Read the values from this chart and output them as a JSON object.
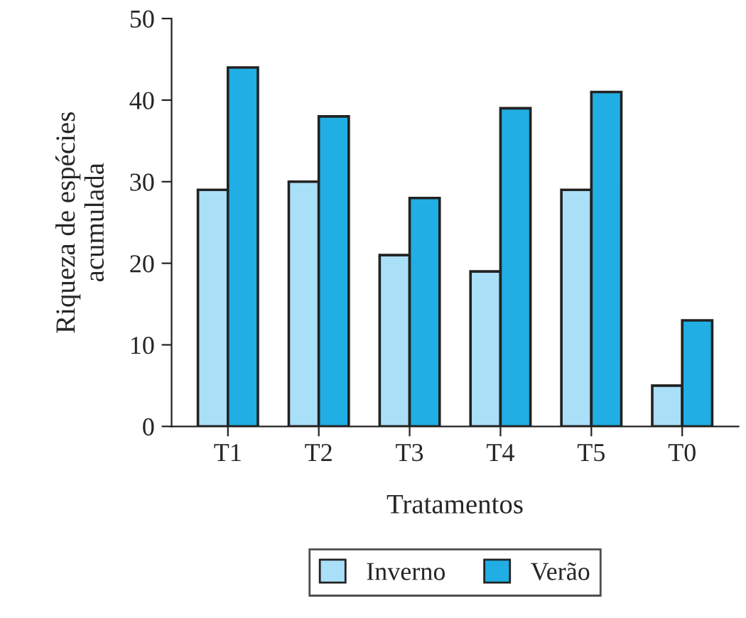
{
  "chart_data": {
    "type": "bar",
    "xlabel": "Tratamentos",
    "ylabel": "Riqueza de espécies\nacumulada",
    "categories": [
      "T1",
      "T2",
      "T3",
      "T4",
      "T5",
      "T0"
    ],
    "series": [
      {
        "name": "Inverno",
        "color": "#aadff8",
        "values": [
          29,
          30,
          21,
          19,
          29,
          5
        ]
      },
      {
        "name": "Verão",
        "color": "#20aee4",
        "values": [
          44,
          38,
          28,
          39,
          41,
          13
        ]
      }
    ],
    "ylim": [
      0,
      50
    ],
    "yticks": [
      0,
      10,
      20,
      30,
      40,
      50
    ],
    "grid": false,
    "legend": "bottom"
  }
}
